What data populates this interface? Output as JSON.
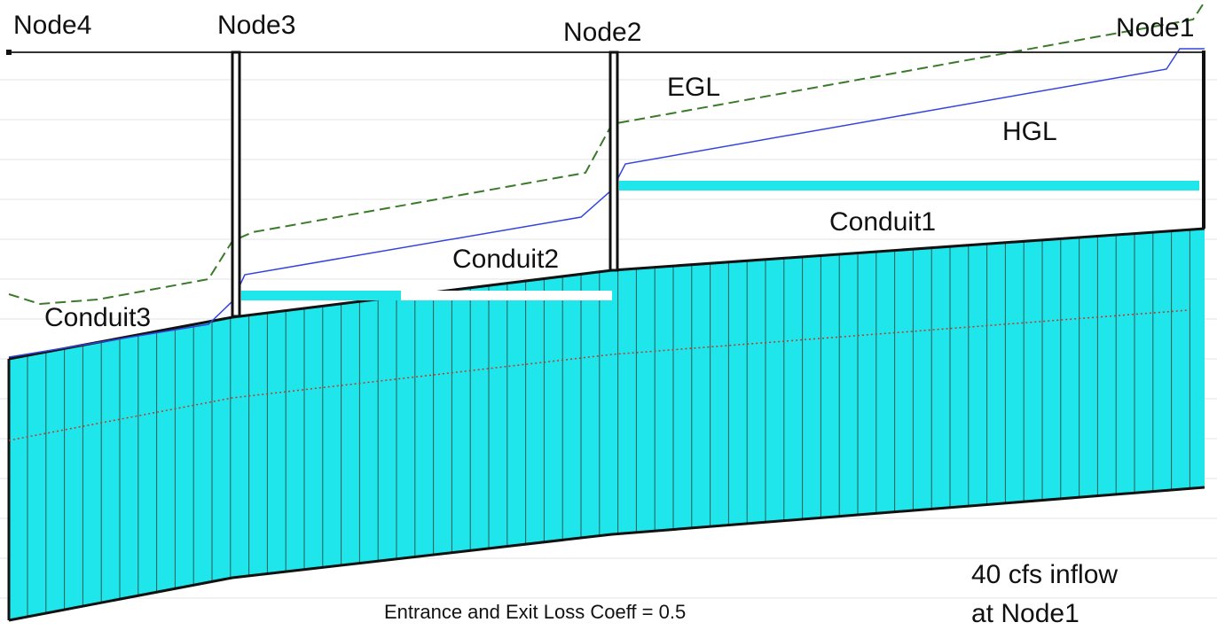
{
  "nodes": [
    {
      "label": "Node4"
    },
    {
      "label": "Node3"
    },
    {
      "label": "Node2"
    },
    {
      "label": "Node1"
    }
  ],
  "conduits": [
    {
      "label": "Conduit1"
    },
    {
      "label": "Conduit2"
    },
    {
      "label": "Conduit3"
    }
  ],
  "lines": {
    "egl": "EGL",
    "hgl": "HGL"
  },
  "annotations": {
    "inflow_line1": "40 cfs inflow",
    "inflow_line2": "at Node1",
    "loss_coeff": "Entrance and Exit Loss Coeff = 0.5"
  }
}
